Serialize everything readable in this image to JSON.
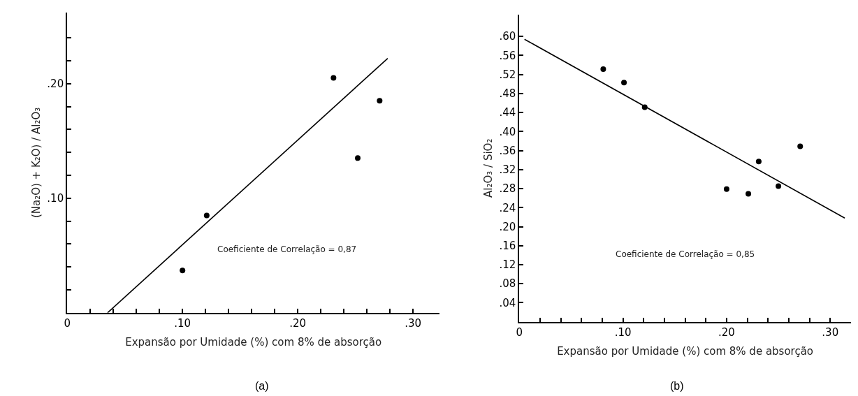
{
  "chart_data": [
    {
      "type": "scatter",
      "title": "(a)",
      "xlabel": "Expansão por Umidade (%) com 8% de absorção",
      "ylabel": "(Na₂O) + K₂O) / Al₂O₃",
      "annotations": [
        "Coeficiente de Correlação = 0,87"
      ],
      "xlim": [
        0,
        0.323
      ],
      "ylim": [
        0,
        0.262
      ],
      "xticks": [
        {
          "value": 0,
          "label": "0"
        },
        {
          "value": 0.02,
          "label": null
        },
        {
          "value": 0.04,
          "label": null
        },
        {
          "value": 0.06,
          "label": null
        },
        {
          "value": 0.08,
          "label": null
        },
        {
          "value": 0.1,
          "label": ".10"
        },
        {
          "value": 0.12,
          "label": null
        },
        {
          "value": 0.14,
          "label": null
        },
        {
          "value": 0.16,
          "label": null
        },
        {
          "value": 0.18,
          "label": null
        },
        {
          "value": 0.2,
          "label": ".20"
        },
        {
          "value": 0.22,
          "label": null
        },
        {
          "value": 0.24,
          "label": null
        },
        {
          "value": 0.26,
          "label": null
        },
        {
          "value": 0.28,
          "label": null
        },
        {
          "value": 0.3,
          "label": ".30"
        }
      ],
      "yticks": [
        {
          "value": 0.02,
          "label": null
        },
        {
          "value": 0.04,
          "label": null
        },
        {
          "value": 0.06,
          "label": null
        },
        {
          "value": 0.08,
          "label": null
        },
        {
          "value": 0.1,
          "label": ".10"
        },
        {
          "value": 0.12,
          "label": null
        },
        {
          "value": 0.14,
          "label": null
        },
        {
          "value": 0.16,
          "label": null
        },
        {
          "value": 0.18,
          "label": null
        },
        {
          "value": 0.2,
          "label": ".20"
        },
        {
          "value": 0.22,
          "label": null
        },
        {
          "value": 0.24,
          "label": null
        }
      ],
      "series": [
        {
          "marker": "circle",
          "color": "#000000",
          "x": [
            0.1,
            0.121,
            0.231,
            0.252,
            0.271
          ],
          "values": [
            0.037,
            0.085,
            0.205,
            0.135,
            0.185
          ]
        },
        {
          "type": "line",
          "color": "#000000",
          "x": [
            0.035,
            0.278
          ],
          "values": [
            0.0,
            0.222
          ]
        }
      ]
    },
    {
      "type": "scatter",
      "title": "(b)",
      "xlabel": "Expansão por Umidade (%) com 8% de absorção",
      "ylabel": "Al₂O₃ / SiO₂",
      "annotations": [
        "Coeficiente de Correlação = 0,85"
      ],
      "xlim": [
        0,
        0.32
      ],
      "ylim": [
        0,
        0.646
      ],
      "xticks": [
        {
          "value": 0,
          "label": "0"
        },
        {
          "value": 0.02,
          "label": null
        },
        {
          "value": 0.04,
          "label": null
        },
        {
          "value": 0.06,
          "label": null
        },
        {
          "value": 0.08,
          "label": null
        },
        {
          "value": 0.1,
          "label": ".10"
        },
        {
          "value": 0.12,
          "label": null
        },
        {
          "value": 0.14,
          "label": null
        },
        {
          "value": 0.16,
          "label": null
        },
        {
          "value": 0.18,
          "label": null
        },
        {
          "value": 0.2,
          "label": ".20"
        },
        {
          "value": 0.22,
          "label": null
        },
        {
          "value": 0.24,
          "label": null
        },
        {
          "value": 0.26,
          "label": null
        },
        {
          "value": 0.28,
          "label": null
        },
        {
          "value": 0.3,
          "label": ".30"
        }
      ],
      "yticks": [
        {
          "value": 0.04,
          "label": ".04"
        },
        {
          "value": 0.08,
          "label": ".08"
        },
        {
          "value": 0.12,
          "label": ".12"
        },
        {
          "value": 0.16,
          "label": ".16"
        },
        {
          "value": 0.2,
          "label": ".20"
        },
        {
          "value": 0.24,
          "label": ".24"
        },
        {
          "value": 0.28,
          "label": ".28"
        },
        {
          "value": 0.32,
          "label": ".32"
        },
        {
          "value": 0.36,
          "label": ".36"
        },
        {
          "value": 0.4,
          "label": ".40"
        },
        {
          "value": 0.44,
          "label": ".44"
        },
        {
          "value": 0.48,
          "label": ".48"
        },
        {
          "value": 0.52,
          "label": ".52"
        },
        {
          "value": 0.56,
          "label": ".56"
        },
        {
          "value": 0.6,
          "label": ".60"
        }
      ],
      "series": [
        {
          "marker": "circle",
          "color": "#000000",
          "x": [
            0.081,
            0.101,
            0.121,
            0.2,
            0.221,
            0.231,
            0.25,
            0.271
          ],
          "values": [
            0.531,
            0.503,
            0.451,
            0.279,
            0.269,
            0.337,
            0.285,
            0.369
          ]
        },
        {
          "type": "line",
          "color": "#000000",
          "x": [
            0.005,
            0.314
          ],
          "values": [
            0.594,
            0.218
          ]
        }
      ]
    }
  ]
}
